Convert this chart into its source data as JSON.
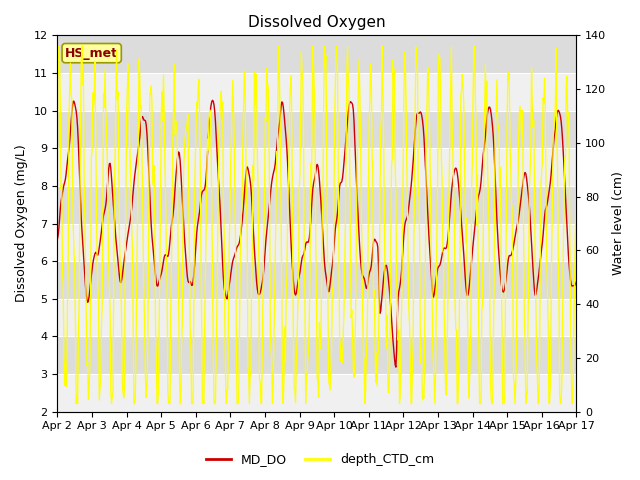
{
  "title": "Dissolved Oxygen",
  "ylabel_left": "Dissolved Oxygen (mg/L)",
  "ylabel_right": "Water level (cm)",
  "ylim_left": [
    2.0,
    12.0
  ],
  "ylim_right": [
    0,
    140
  ],
  "yticks_left": [
    2.0,
    3.0,
    4.0,
    5.0,
    6.0,
    7.0,
    8.0,
    9.0,
    10.0,
    11.0,
    12.0
  ],
  "yticks_right": [
    0,
    20,
    40,
    60,
    80,
    100,
    120,
    140
  ],
  "xtick_labels": [
    "Apr 2",
    "Apr 3",
    "Apr 4",
    "Apr 5",
    "Apr 6",
    "Apr 7",
    "Apr 8",
    "Apr 9",
    "Apr 10",
    "Apr 11",
    "Apr 12",
    "Apr 13",
    "Apr 14",
    "Apr 15",
    "Apr 16",
    "Apr 17"
  ],
  "color_DO": "#cc0000",
  "color_CTD": "#ffff00",
  "legend_box_label": "HS_met",
  "legend_DO": "MD_DO",
  "legend_CTD": "depth_CTD_cm",
  "bg_color_light": "#f0f0f0",
  "bg_color_dark": "#dcdcdc",
  "title_fontsize": 11,
  "axis_label_fontsize": 9,
  "tick_fontsize": 8
}
